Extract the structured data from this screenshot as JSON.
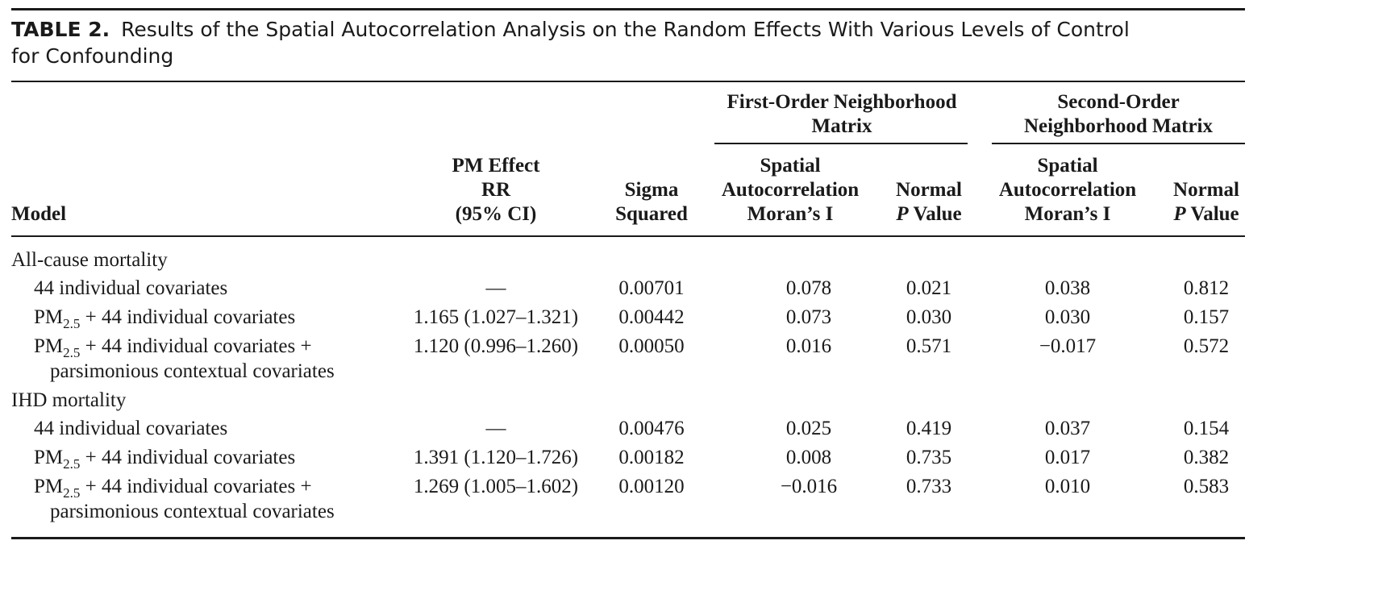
{
  "caption": {
    "label": "TABLE 2.",
    "text_line1": "Results of the Spatial Autocorrelation Analysis on the Random Effects With Various Levels of Control",
    "text_line2": "for Confounding"
  },
  "header": {
    "group1": [
      "First-Order Neighborhood",
      "Matrix"
    ],
    "group2": [
      "Second-Order",
      "Neighborhood Matrix"
    ],
    "model": "Model",
    "pm_effect": [
      "PM Effect",
      "RR",
      "(95% CI)"
    ],
    "sigma": [
      "Sigma",
      "Squared"
    ],
    "moran": [
      "Spatial",
      "Autocorrelation",
      "Moran’s I"
    ],
    "normal": "Normal",
    "p": "P",
    "value": "Value"
  },
  "sections": [
    {
      "title": "All-cause mortality",
      "rows": [
        {
          "model": "44 individual covariates",
          "pm": "—",
          "sigma": "0.00701",
          "moran1": "0.078",
          "p1": "0.021",
          "moran2": "0.038",
          "p2": "0.812"
        },
        {
          "model_pm": "PM",
          "model_sub": "2.5",
          "model": "+ 44 individual covariates",
          "pm": "1.165 (1.027–1.321)",
          "sigma": "0.00442",
          "moran1": "0.073",
          "p1": "0.030",
          "moran2": "0.030",
          "p2": "0.157"
        },
        {
          "model_pm": "PM",
          "model_sub": "2.5",
          "model": "+ 44 individual covariates +",
          "model_cont": "parsimonious contextual covariates",
          "pm": "1.120 (0.996–1.260)",
          "sigma": "0.00050",
          "moran1": "0.016",
          "p1": "0.571",
          "moran2": "−0.017",
          "p2": "0.572"
        }
      ]
    },
    {
      "title": "IHD mortality",
      "rows": [
        {
          "model": "44 individual covariates",
          "pm": "—",
          "sigma": "0.00476",
          "moran1": "0.025",
          "p1": "0.419",
          "moran2": "0.037",
          "p2": "0.154"
        },
        {
          "model_pm": "PM",
          "model_sub": "2.5",
          "model": "+ 44 individual covariates",
          "pm": "1.391 (1.120–1.726)",
          "sigma": "0.00182",
          "moran1": "0.008",
          "p1": "0.735",
          "moran2": "0.017",
          "p2": "0.382"
        },
        {
          "model_pm": "PM",
          "model_sub": "2.5",
          "model": "+ 44 individual covariates +",
          "model_cont": "parsimonious contextual covariates",
          "pm": "1.269 (1.005–1.602)",
          "sigma": "0.00120",
          "moran1": "−0.016",
          "p1": "0.733",
          "moran2": "0.010",
          "p2": "0.583"
        }
      ]
    }
  ]
}
